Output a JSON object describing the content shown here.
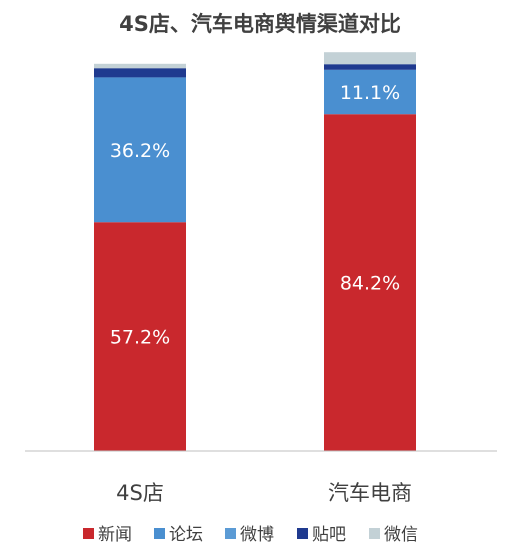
{
  "chart_data": {
    "type": "bar",
    "stacked": true,
    "title": "4S店、汽车电商舆情渠道对比",
    "categories": [
      "4S店",
      "汽车电商"
    ],
    "series": [
      {
        "name": "新闻",
        "color": "#C9282D",
        "values": [
          57.2,
          84.2
        ],
        "labels": [
          "57.2%",
          "84.2%"
        ]
      },
      {
        "name": "论坛",
        "color": "#4A8FD0",
        "values": [
          36.2,
          11.1
        ],
        "labels": [
          "36.2%",
          "11.1%"
        ]
      },
      {
        "name": "微博",
        "color": "#5B9BD5",
        "values": [
          0.0,
          0.0
        ],
        "labels": [
          "",
          ""
        ]
      },
      {
        "name": "贴吧",
        "color": "#1F3A8F",
        "values": [
          2.3,
          1.4
        ],
        "labels": [
          "",
          ""
        ]
      },
      {
        "name": "微信",
        "color": "#C3D1D6",
        "values": [
          1.1,
          3.0
        ],
        "labels": [
          "",
          ""
        ]
      }
    ],
    "ylim": [
      0,
      100
    ],
    "grid": false,
    "legend_position": "bottom"
  }
}
